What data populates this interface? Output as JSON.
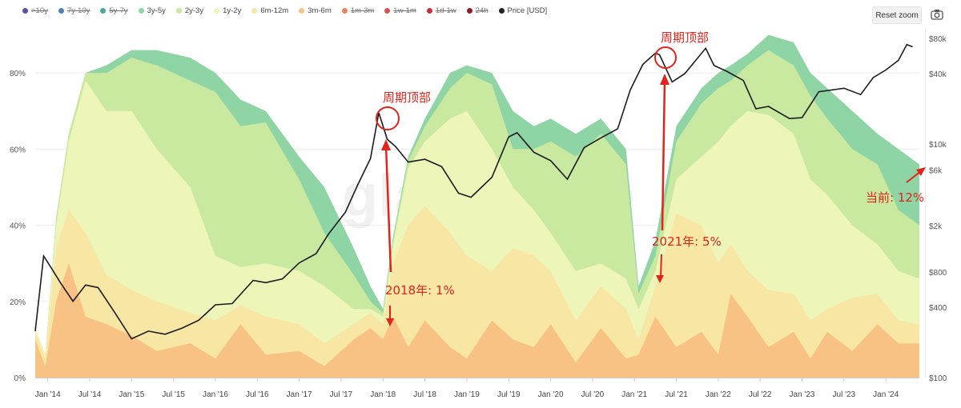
{
  "toolbar": {
    "reset_zoom_label": "Reset zoom",
    "camera_icon": "camera-icon"
  },
  "legend": [
    {
      "label": ">10y",
      "color": "#5a4fb0",
      "enabled": false
    },
    {
      "label": "7y-10y",
      "color": "#4f7fb5",
      "enabled": false
    },
    {
      "label": "5y-7y",
      "color": "#4aa99a",
      "enabled": false
    },
    {
      "label": "3y-5y",
      "color": "#8fd4a5",
      "enabled": true
    },
    {
      "label": "2y-3y",
      "color": "#c9e8a0",
      "enabled": true
    },
    {
      "label": "1y-2y",
      "color": "#eef5b8",
      "enabled": true
    },
    {
      "label": "6m-12m",
      "color": "#f8e6a4",
      "enabled": true
    },
    {
      "label": "3m-6m",
      "color": "#f7c283",
      "enabled": true
    },
    {
      "label": "1m-3m",
      "color": "#e8825a",
      "enabled": false
    },
    {
      "label": "1w-1m",
      "color": "#d9534f",
      "enabled": false
    },
    {
      "label": "1d-1w",
      "color": "#c62f3a",
      "enabled": false
    },
    {
      "label": "24h",
      "color": "#8e1c2a",
      "enabled": false
    },
    {
      "label": "Price [USD]",
      "color": "#222222",
      "enabled": true
    }
  ],
  "watermark": "glassnode",
  "chart_data": {
    "type": "area",
    "title": "",
    "x_ticks": [
      "Jan '14",
      "Jul '14",
      "Jan '15",
      "Jul '15",
      "Jan '16",
      "Jul '16",
      "Jan '17",
      "Jul '17",
      "Jan '18",
      "Jul '18",
      "Jan '19",
      "Jul '19",
      "Jan '20",
      "Jul '20",
      "Jan '21",
      "Jul '21",
      "Jan '22",
      "Jul '22",
      "Jan '23",
      "Jul '23",
      "Jan '24"
    ],
    "x_range": [
      2013.85,
      2024.4
    ],
    "y_left": {
      "ticks": [
        "0%",
        "20%",
        "40%",
        "60%",
        "80%"
      ],
      "values": [
        0,
        20,
        40,
        60,
        80
      ],
      "range": [
        0,
        92
      ]
    },
    "y_right": {
      "ticks": [
        "$100",
        "$400",
        "$800",
        "$2k",
        "$6k",
        "$10k",
        "$40k",
        "$80k"
      ],
      "values": [
        100,
        400,
        800,
        2000,
        6000,
        10000,
        40000,
        80000
      ],
      "log": true,
      "range": [
        100,
        100000
      ]
    },
    "stack_order": [
      "3m-6m",
      "6m-12m",
      "1y-2y",
      "2y-3y",
      "3y-5y"
    ],
    "series": [
      {
        "name": "3m-6m",
        "color": "#f7c283",
        "points": [
          [
            2013.85,
            10
          ],
          [
            2013.97,
            3
          ],
          [
            2014.1,
            20
          ],
          [
            2014.25,
            30
          ],
          [
            2014.45,
            16
          ],
          [
            2014.7,
            14
          ],
          [
            2015.0,
            11
          ],
          [
            2015.3,
            7
          ],
          [
            2015.7,
            9
          ],
          [
            2016.0,
            5
          ],
          [
            2016.3,
            14
          ],
          [
            2016.6,
            6
          ],
          [
            2017.0,
            7
          ],
          [
            2017.3,
            3
          ],
          [
            2017.65,
            10
          ],
          [
            2017.85,
            13
          ],
          [
            2018.0,
            10
          ],
          [
            2018.12,
            16
          ],
          [
            2018.3,
            8
          ],
          [
            2018.5,
            15
          ],
          [
            2018.8,
            8
          ],
          [
            2019.0,
            5
          ],
          [
            2019.3,
            15
          ],
          [
            2019.55,
            10
          ],
          [
            2019.8,
            8
          ],
          [
            2020.0,
            14
          ],
          [
            2020.3,
            4
          ],
          [
            2020.6,
            13
          ],
          [
            2020.9,
            5
          ],
          [
            2021.05,
            6
          ],
          [
            2021.25,
            16
          ],
          [
            2021.5,
            8
          ],
          [
            2021.8,
            12
          ],
          [
            2022.0,
            6
          ],
          [
            2022.15,
            22
          ],
          [
            2022.35,
            16
          ],
          [
            2022.6,
            8
          ],
          [
            2022.9,
            12
          ],
          [
            2023.1,
            5
          ],
          [
            2023.3,
            12
          ],
          [
            2023.6,
            7
          ],
          [
            2023.9,
            14
          ],
          [
            2024.15,
            9
          ],
          [
            2024.4,
            9
          ]
        ]
      },
      {
        "name": "6m-12m",
        "color": "#f8e6a4",
        "points": [
          [
            2013.85,
            12
          ],
          [
            2013.97,
            5
          ],
          [
            2014.1,
            34
          ],
          [
            2014.25,
            44
          ],
          [
            2014.45,
            38
          ],
          [
            2014.7,
            27
          ],
          [
            2015.0,
            23
          ],
          [
            2015.3,
            20
          ],
          [
            2015.7,
            17
          ],
          [
            2016.0,
            15
          ],
          [
            2016.3,
            19
          ],
          [
            2016.6,
            16
          ],
          [
            2017.0,
            14
          ],
          [
            2017.3,
            9
          ],
          [
            2017.65,
            14
          ],
          [
            2017.85,
            17
          ],
          [
            2018.0,
            14
          ],
          [
            2018.12,
            30
          ],
          [
            2018.3,
            40
          ],
          [
            2018.5,
            45
          ],
          [
            2018.8,
            38
          ],
          [
            2019.0,
            32
          ],
          [
            2019.3,
            28
          ],
          [
            2019.55,
            34
          ],
          [
            2019.8,
            32
          ],
          [
            2020.0,
            28
          ],
          [
            2020.3,
            15
          ],
          [
            2020.6,
            24
          ],
          [
            2020.9,
            18
          ],
          [
            2021.05,
            10
          ],
          [
            2021.25,
            24
          ],
          [
            2021.5,
            43
          ],
          [
            2021.8,
            40
          ],
          [
            2022.0,
            30
          ],
          [
            2022.15,
            35
          ],
          [
            2022.35,
            28
          ],
          [
            2022.6,
            23
          ],
          [
            2022.9,
            22
          ],
          [
            2023.1,
            15
          ],
          [
            2023.3,
            18
          ],
          [
            2023.6,
            21
          ],
          [
            2023.9,
            22
          ],
          [
            2024.15,
            15
          ],
          [
            2024.4,
            14
          ]
        ]
      },
      {
        "name": "1y-2y",
        "color": "#eef5b8",
        "points": [
          [
            2013.85,
            13
          ],
          [
            2013.97,
            6
          ],
          [
            2014.1,
            40
          ],
          [
            2014.25,
            62
          ],
          [
            2014.45,
            78
          ],
          [
            2014.7,
            70
          ],
          [
            2015.0,
            70
          ],
          [
            2015.3,
            60
          ],
          [
            2015.7,
            50
          ],
          [
            2016.0,
            32
          ],
          [
            2016.3,
            29
          ],
          [
            2016.6,
            30
          ],
          [
            2017.0,
            28
          ],
          [
            2017.3,
            24
          ],
          [
            2017.65,
            18
          ],
          [
            2017.85,
            18
          ],
          [
            2018.0,
            16
          ],
          [
            2018.12,
            35
          ],
          [
            2018.3,
            55
          ],
          [
            2018.5,
            62
          ],
          [
            2018.8,
            68
          ],
          [
            2019.0,
            70
          ],
          [
            2019.3,
            60
          ],
          [
            2019.55,
            50
          ],
          [
            2019.8,
            44
          ],
          [
            2020.0,
            38
          ],
          [
            2020.3,
            28
          ],
          [
            2020.6,
            30
          ],
          [
            2020.9,
            26
          ],
          [
            2021.05,
            18
          ],
          [
            2021.25,
            28
          ],
          [
            2021.5,
            52
          ],
          [
            2021.8,
            58
          ],
          [
            2022.0,
            62
          ],
          [
            2022.15,
            66
          ],
          [
            2022.35,
            70
          ],
          [
            2022.6,
            69
          ],
          [
            2022.9,
            64
          ],
          [
            2023.1,
            52
          ],
          [
            2023.3,
            48
          ],
          [
            2023.6,
            40
          ],
          [
            2023.9,
            35
          ],
          [
            2024.15,
            28
          ],
          [
            2024.4,
            26
          ]
        ]
      },
      {
        "name": "2y-3y",
        "color": "#c9e8a0",
        "points": [
          [
            2013.85,
            13
          ],
          [
            2013.97,
            6
          ],
          [
            2014.1,
            42
          ],
          [
            2014.25,
            64
          ],
          [
            2014.45,
            80
          ],
          [
            2014.7,
            80
          ],
          [
            2015.0,
            84
          ],
          [
            2015.3,
            82
          ],
          [
            2015.7,
            78
          ],
          [
            2016.0,
            75
          ],
          [
            2016.3,
            66
          ],
          [
            2016.6,
            67
          ],
          [
            2017.0,
            52
          ],
          [
            2017.3,
            38
          ],
          [
            2017.65,
            27
          ],
          [
            2017.85,
            20
          ],
          [
            2018.0,
            17
          ],
          [
            2018.12,
            36
          ],
          [
            2018.3,
            57
          ],
          [
            2018.5,
            66
          ],
          [
            2018.8,
            76
          ],
          [
            2019.0,
            80
          ],
          [
            2019.3,
            77
          ],
          [
            2019.55,
            60
          ],
          [
            2019.8,
            60
          ],
          [
            2020.0,
            62
          ],
          [
            2020.3,
            58
          ],
          [
            2020.6,
            64
          ],
          [
            2020.9,
            56
          ],
          [
            2021.05,
            22
          ],
          [
            2021.25,
            32
          ],
          [
            2021.5,
            62
          ],
          [
            2021.8,
            72
          ],
          [
            2022.0,
            76
          ],
          [
            2022.15,
            78
          ],
          [
            2022.35,
            82
          ],
          [
            2022.6,
            86
          ],
          [
            2022.9,
            82
          ],
          [
            2023.1,
            74
          ],
          [
            2023.3,
            68
          ],
          [
            2023.6,
            60
          ],
          [
            2023.9,
            56
          ],
          [
            2024.15,
            44
          ],
          [
            2024.4,
            40
          ]
        ]
      },
      {
        "name": "3y-5y",
        "color": "#8fd4a5",
        "points": [
          [
            2013.85,
            13
          ],
          [
            2013.97,
            6
          ],
          [
            2014.1,
            42
          ],
          [
            2014.25,
            64
          ],
          [
            2014.45,
            80
          ],
          [
            2014.7,
            82
          ],
          [
            2015.0,
            86
          ],
          [
            2015.3,
            86
          ],
          [
            2015.7,
            84
          ],
          [
            2016.0,
            80
          ],
          [
            2016.3,
            73
          ],
          [
            2016.6,
            70
          ],
          [
            2017.0,
            58
          ],
          [
            2017.3,
            50
          ],
          [
            2017.65,
            34
          ],
          [
            2017.85,
            24
          ],
          [
            2018.0,
            18
          ],
          [
            2018.12,
            37
          ],
          [
            2018.3,
            58
          ],
          [
            2018.5,
            68
          ],
          [
            2018.8,
            80
          ],
          [
            2019.0,
            82
          ],
          [
            2019.3,
            80
          ],
          [
            2019.55,
            70
          ],
          [
            2019.8,
            66
          ],
          [
            2020.0,
            68
          ],
          [
            2020.3,
            64
          ],
          [
            2020.6,
            68
          ],
          [
            2020.9,
            60
          ],
          [
            2021.05,
            24
          ],
          [
            2021.25,
            36
          ],
          [
            2021.5,
            66
          ],
          [
            2021.8,
            76
          ],
          [
            2022.0,
            80
          ],
          [
            2022.15,
            82
          ],
          [
            2022.35,
            85
          ],
          [
            2022.6,
            90
          ],
          [
            2022.9,
            88
          ],
          [
            2023.1,
            80
          ],
          [
            2023.3,
            76
          ],
          [
            2023.6,
            70
          ],
          [
            2023.9,
            64
          ],
          [
            2024.15,
            60
          ],
          [
            2024.4,
            56
          ]
        ]
      }
    ],
    "price_series": {
      "name": "Price [USD]",
      "color": "#1c1c1c",
      "points": [
        [
          2013.85,
          250
        ],
        [
          2013.95,
          1100
        ],
        [
          2014.05,
          850
        ],
        [
          2014.15,
          650
        ],
        [
          2014.3,
          450
        ],
        [
          2014.45,
          620
        ],
        [
          2014.6,
          590
        ],
        [
          2014.8,
          360
        ],
        [
          2015.0,
          215
        ],
        [
          2015.2,
          250
        ],
        [
          2015.4,
          235
        ],
        [
          2015.6,
          265
        ],
        [
          2015.8,
          310
        ],
        [
          2016.0,
          420
        ],
        [
          2016.2,
          430
        ],
        [
          2016.45,
          680
        ],
        [
          2016.6,
          650
        ],
        [
          2016.8,
          700
        ],
        [
          2017.0,
          960
        ],
        [
          2017.2,
          1150
        ],
        [
          2017.35,
          1700
        ],
        [
          2017.55,
          2600
        ],
        [
          2017.7,
          4500
        ],
        [
          2017.85,
          7500
        ],
        [
          2017.95,
          18500
        ],
        [
          2018.05,
          11000
        ],
        [
          2018.15,
          9500
        ],
        [
          2018.3,
          7000
        ],
        [
          2018.5,
          7400
        ],
        [
          2018.7,
          6400
        ],
        [
          2018.9,
          3800
        ],
        [
          2019.05,
          3500
        ],
        [
          2019.3,
          5200
        ],
        [
          2019.5,
          11500
        ],
        [
          2019.6,
          12500
        ],
        [
          2019.8,
          8500
        ],
        [
          2020.0,
          7200
        ],
        [
          2020.2,
          5000
        ],
        [
          2020.4,
          9300
        ],
        [
          2020.6,
          11300
        ],
        [
          2020.8,
          13500
        ],
        [
          2020.95,
          29000
        ],
        [
          2021.1,
          48000
        ],
        [
          2021.25,
          60000
        ],
        [
          2021.3,
          58000
        ],
        [
          2021.45,
          34000
        ],
        [
          2021.6,
          40000
        ],
        [
          2021.85,
          66000
        ],
        [
          2021.95,
          47000
        ],
        [
          2022.1,
          42000
        ],
        [
          2022.3,
          35000
        ],
        [
          2022.45,
          20000
        ],
        [
          2022.6,
          21000
        ],
        [
          2022.85,
          16500
        ],
        [
          2023.0,
          16800
        ],
        [
          2023.2,
          28000
        ],
        [
          2023.5,
          30000
        ],
        [
          2023.7,
          26500
        ],
        [
          2023.85,
          37000
        ],
        [
          2024.0,
          43000
        ],
        [
          2024.15,
          52000
        ],
        [
          2024.25,
          71000
        ],
        [
          2024.32,
          68000
        ]
      ]
    }
  },
  "annotations": {
    "top1": "周期顶部",
    "top2": "周期顶部",
    "low2018": "2018年: 1%",
    "low2021": "2021年: 5%",
    "current": "当前: 12%"
  }
}
